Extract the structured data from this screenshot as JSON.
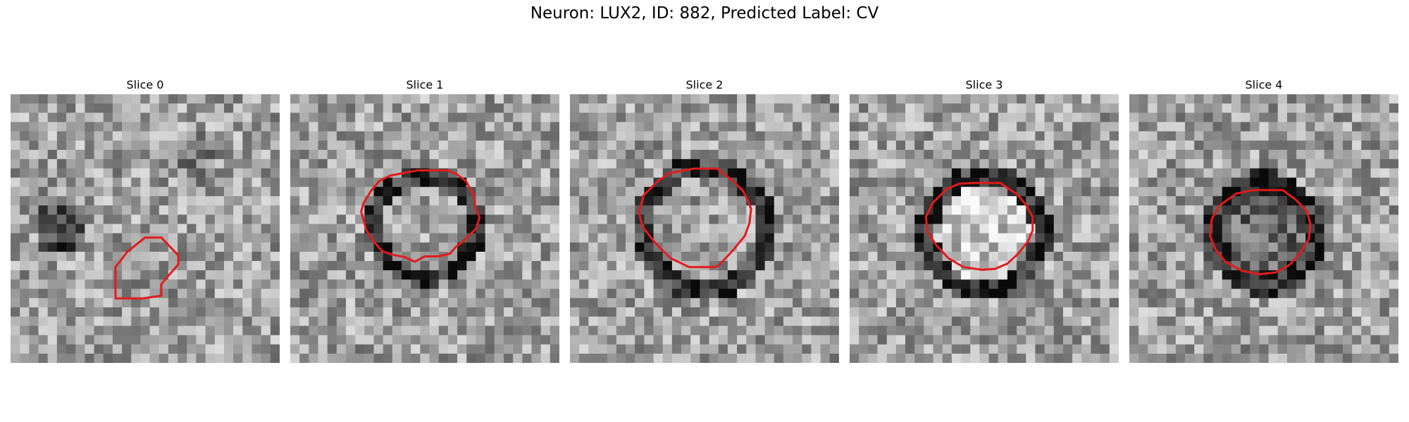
{
  "figure": {
    "title": "Neuron: LUX2, ID: 882, Predicted Label: CV",
    "contour_color": "#e41a1c",
    "panels": [
      {
        "title": "Slice 0"
      },
      {
        "title": "Slice 1"
      },
      {
        "title": "Slice 2"
      },
      {
        "title": "Slice 3"
      },
      {
        "title": "Slice 4"
      }
    ]
  }
}
